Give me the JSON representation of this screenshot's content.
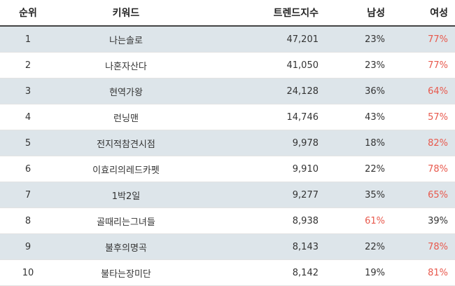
{
  "table": {
    "headers": {
      "rank": "순위",
      "keyword": "키워드",
      "trend": "트렌드지수",
      "male": "남성",
      "female": "여성"
    },
    "highlight_color": "#e8594d",
    "rows": [
      {
        "rank": "1",
        "keyword": "나는솔로",
        "trend": "47,201",
        "male": "23%",
        "female": "77%",
        "major": "female"
      },
      {
        "rank": "2",
        "keyword": "나혼자산다",
        "trend": "41,050",
        "male": "23%",
        "female": "77%",
        "major": "female"
      },
      {
        "rank": "3",
        "keyword": "현역가왕",
        "trend": "24,128",
        "male": "36%",
        "female": "64%",
        "major": "female"
      },
      {
        "rank": "4",
        "keyword": "런닝맨",
        "trend": "14,746",
        "male": "43%",
        "female": "57%",
        "major": "female"
      },
      {
        "rank": "5",
        "keyword": "전지적참견시점",
        "trend": "9,978",
        "male": "18%",
        "female": "82%",
        "major": "female"
      },
      {
        "rank": "6",
        "keyword": "이효리의레드카펫",
        "trend": "9,910",
        "male": "22%",
        "female": "78%",
        "major": "female"
      },
      {
        "rank": "7",
        "keyword": "1박2일",
        "trend": "9,277",
        "male": "35%",
        "female": "65%",
        "major": "female"
      },
      {
        "rank": "8",
        "keyword": "골때리는그녀들",
        "trend": "8,938",
        "male": "61%",
        "female": "39%",
        "major": "male"
      },
      {
        "rank": "9",
        "keyword": "불후의명곡",
        "trend": "8,143",
        "male": "22%",
        "female": "78%",
        "major": "female"
      },
      {
        "rank": "10",
        "keyword": "불타는장미단",
        "trend": "8,142",
        "male": "19%",
        "female": "81%",
        "major": "female"
      }
    ]
  }
}
